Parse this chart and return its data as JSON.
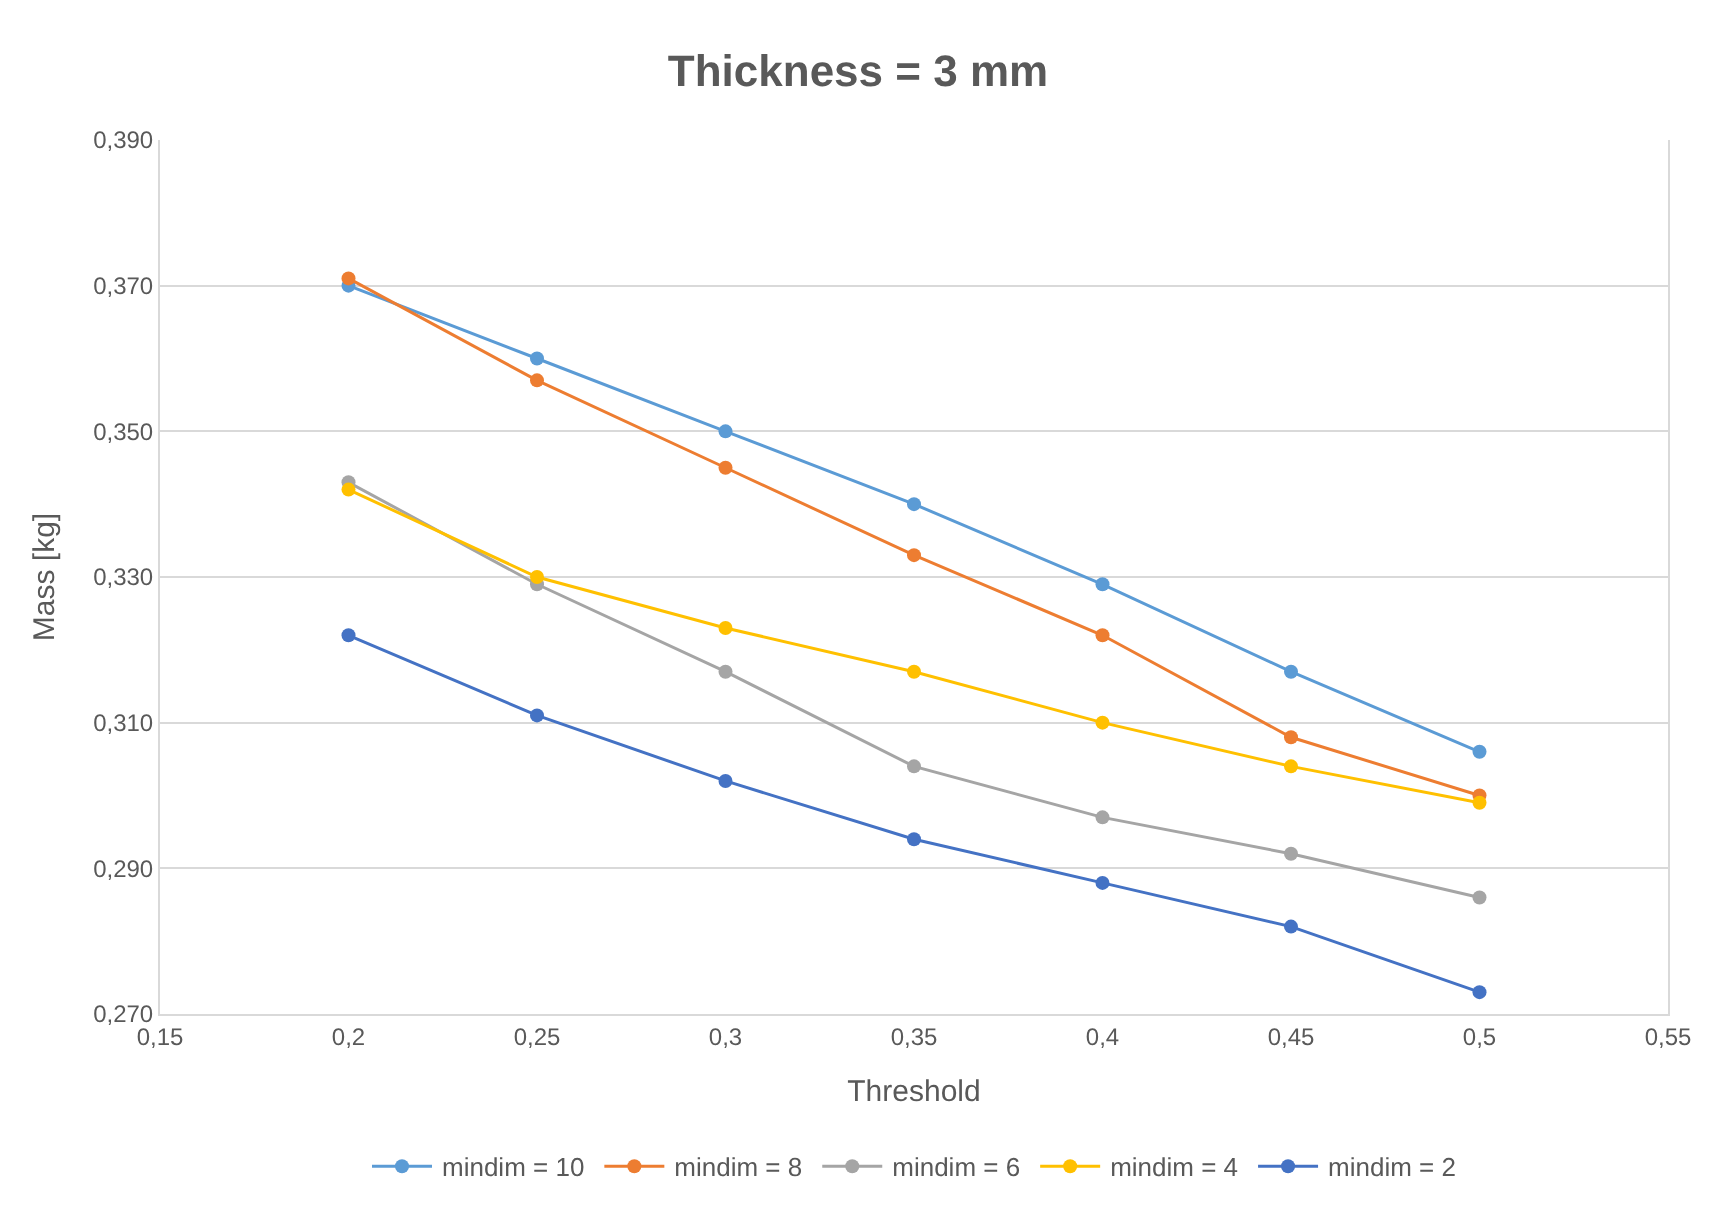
{
  "chart_data": {
    "type": "line",
    "title": "Thickness = 3 mm",
    "xlabel": "Threshold",
    "ylabel": "Mass [kg]",
    "x": [
      0.2,
      0.25,
      0.3,
      0.35,
      0.4,
      0.45,
      0.5
    ],
    "series": [
      {
        "name": "mindim = 10",
        "color": "#5b9bd5",
        "values": [
          0.37,
          0.36,
          0.35,
          0.34,
          0.329,
          0.317,
          0.306
        ]
      },
      {
        "name": "mindim = 8",
        "color": "#ed7d31",
        "values": [
          0.371,
          0.357,
          0.345,
          0.333,
          0.322,
          0.308,
          0.3
        ]
      },
      {
        "name": "mindim = 6",
        "color": "#a5a5a5",
        "values": [
          0.343,
          0.329,
          0.317,
          0.304,
          0.297,
          0.292,
          0.286
        ]
      },
      {
        "name": "mindim = 4",
        "color": "#ffc000",
        "values": [
          0.342,
          0.33,
          0.323,
          0.317,
          0.31,
          0.304,
          0.299
        ]
      },
      {
        "name": "mindim = 2",
        "color": "#4472c4",
        "values": [
          0.322,
          0.311,
          0.302,
          0.294,
          0.288,
          0.282,
          0.273
        ]
      }
    ],
    "xlim": [
      0.15,
      0.55
    ],
    "xticks": [
      {
        "value": 0.15,
        "label": "0,15"
      },
      {
        "value": 0.2,
        "label": "0,2"
      },
      {
        "value": 0.25,
        "label": "0,25"
      },
      {
        "value": 0.3,
        "label": "0,3"
      },
      {
        "value": 0.35,
        "label": "0,35"
      },
      {
        "value": 0.4,
        "label": "0,4"
      },
      {
        "value": 0.45,
        "label": "0,45"
      },
      {
        "value": 0.5,
        "label": "0,5"
      },
      {
        "value": 0.55,
        "label": "0,55"
      }
    ],
    "ylim": [
      0.27,
      0.39
    ],
    "yticks": [
      {
        "value": 0.27,
        "label": "0,270"
      },
      {
        "value": 0.29,
        "label": "0,290"
      },
      {
        "value": 0.31,
        "label": "0,310"
      },
      {
        "value": 0.33,
        "label": "0,330"
      },
      {
        "value": 0.35,
        "label": "0,350"
      },
      {
        "value": 0.37,
        "label": "0,370"
      },
      {
        "value": 0.39,
        "label": "0,390"
      }
    ],
    "grid": "y",
    "legend": "bottom",
    "marker": "circle",
    "line_style": "solid"
  }
}
